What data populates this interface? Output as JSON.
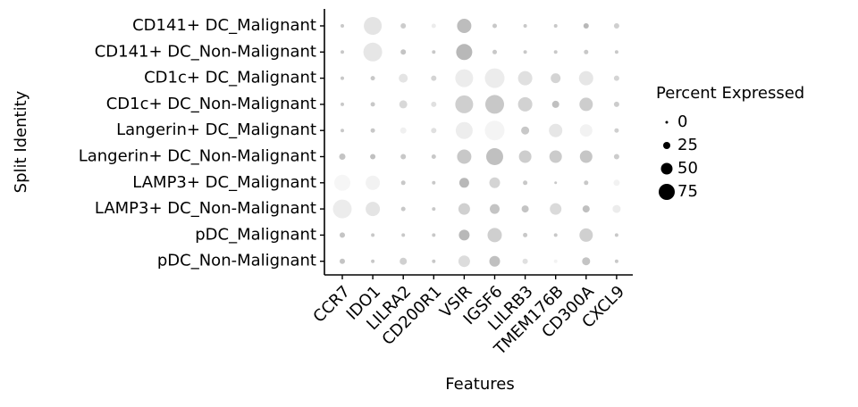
{
  "chart_data": {
    "type": "dot",
    "x_label": "Features",
    "y_label": "Split Identity",
    "categories": [
      "CCR7",
      "IDO1",
      "LILRA2",
      "CD200R1",
      "VSIR",
      "IGSF6",
      "LILRB3",
      "TMEM176B",
      "CD300A",
      "CXCL9"
    ],
    "series": [
      {
        "name": "CD141+ DC_Malignant",
        "values": [
          5,
          85,
          15,
          10,
          65,
          10,
          5,
          5,
          15,
          15
        ],
        "colors": [
          "#c8c8c8",
          "#e4e4e4",
          "#cccccc",
          "#ececec",
          "#bdbdbd",
          "#c8c8c8",
          "#c8c8c8",
          "#c8c8c8",
          "#b8b8b8",
          "#cfcfcf"
        ]
      },
      {
        "name": "CD141+ DC_Non-Malignant",
        "values": [
          5,
          90,
          15,
          5,
          75,
          10,
          5,
          5,
          10,
          5
        ],
        "colors": [
          "#c8c8c8",
          "#e6e6e6",
          "#c4c4c4",
          "#c8c8c8",
          "#b8b8b8",
          "#c8c8c8",
          "#c8c8c8",
          "#c8c8c8",
          "#c8c8c8",
          "#c8c8c8"
        ]
      },
      {
        "name": "CD1c+ DC_Malignant",
        "values": [
          5,
          10,
          35,
          15,
          85,
          95,
          65,
          40,
          65,
          15
        ],
        "colors": [
          "#c8c8c8",
          "#c8c8c8",
          "#e4e4e4",
          "#d4d4d4",
          "#ececec",
          "#ececec",
          "#e0e0e0",
          "#d4d4d4",
          "#e6e6e6",
          "#d4d4d4"
        ]
      },
      {
        "name": "CD1c+ DC_Non-Malignant",
        "values": [
          5,
          10,
          30,
          15,
          85,
          90,
          65,
          25,
          60,
          15
        ],
        "colors": [
          "#c8c8c8",
          "#c8c8c8",
          "#d8d8d8",
          "#e0e0e0",
          "#cfcfcf",
          "#c8c8c8",
          "#d2d2d2",
          "#c0c0c0",
          "#cdcdcd",
          "#cccccc"
        ]
      },
      {
        "name": "Langerin+ DC_Malignant",
        "values": [
          5,
          10,
          20,
          15,
          80,
          95,
          30,
          60,
          55,
          10
        ],
        "colors": [
          "#c8c8c8",
          "#c8c8c8",
          "#f0f0f0",
          "#e0e0e0",
          "#ededed",
          "#f4f4f4",
          "#c8c8c8",
          "#e6e6e6",
          "#f2f2f2",
          "#cfcfcf"
        ]
      },
      {
        "name": "Langerin+ DC_Non-Malignant",
        "values": [
          20,
          15,
          15,
          10,
          65,
          80,
          55,
          55,
          55,
          15
        ],
        "colors": [
          "#c4c4c4",
          "#c0c0c0",
          "#c8c8c8",
          "#c8c8c8",
          "#c8c8c8",
          "#c0c0c0",
          "#cdcdcd",
          "#cbcbcb",
          "#c6c6c6",
          "#cccccc"
        ]
      },
      {
        "name": "LAMP3+ DC_Malignant",
        "values": [
          75,
          65,
          10,
          5,
          40,
          45,
          10,
          0,
          10,
          20
        ],
        "colors": [
          "#f6f6f6",
          "#f2f2f2",
          "#c8c8c8",
          "#c8c8c8",
          "#b8b8b8",
          "#d4d4d4",
          "#c8c8c8",
          "#c8c8c8",
          "#c8c8c8",
          "#f2f2f2"
        ]
      },
      {
        "name": "LAMP3+ DC_Non-Malignant",
        "values": [
          90,
          65,
          10,
          5,
          50,
          40,
          25,
          50,
          25,
          30
        ],
        "colors": [
          "#ececec",
          "#e4e4e4",
          "#c8c8c8",
          "#c8c8c8",
          "#d0d0d0",
          "#c4c4c4",
          "#c4c4c4",
          "#dadada",
          "#c0c0c0",
          "#ececec"
        ]
      },
      {
        "name": "pDC_Malignant",
        "values": [
          15,
          5,
          5,
          5,
          45,
          65,
          10,
          5,
          60,
          5
        ],
        "colors": [
          "#c4c4c4",
          "#c8c8c8",
          "#c8c8c8",
          "#c8c8c8",
          "#b8b8b8",
          "#cfcfcf",
          "#c8c8c8",
          "#c8c8c8",
          "#d0d0d0",
          "#c8c8c8"
        ]
      },
      {
        "name": "pDC_Non-Malignant",
        "values": [
          15,
          5,
          25,
          5,
          50,
          45,
          15,
          5,
          30,
          5
        ],
        "colors": [
          "#c4c4c4",
          "#c8c8c8",
          "#d0d0d0",
          "#c8c8c8",
          "#dcdcdc",
          "#c0c0c0",
          "#e0e0e0",
          "#f2f2f2",
          "#c4c4c4",
          "#c8c8c8"
        ]
      }
    ],
    "size_legend": {
      "title": "Percent Expressed",
      "values": [
        0,
        25,
        50,
        75
      ],
      "color": "#000000"
    }
  }
}
